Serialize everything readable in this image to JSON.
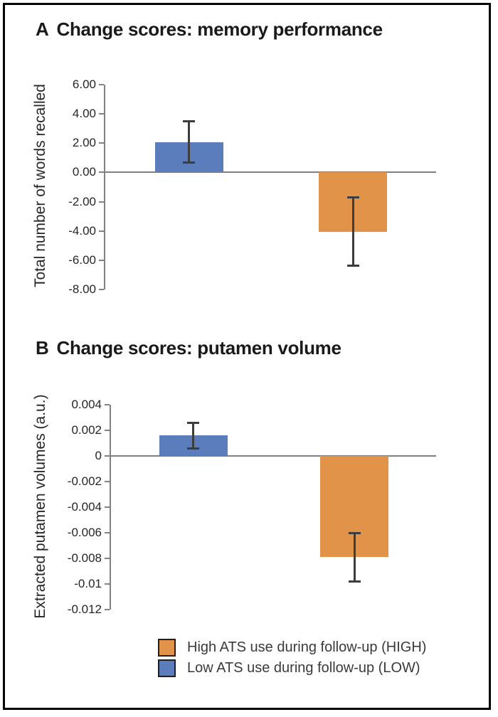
{
  "figure": {
    "legend": {
      "items": [
        {
          "name": "high",
          "label": "High ATS use during follow-up (HIGH)",
          "color": "#e2934a"
        },
        {
          "name": "low",
          "label": "Low ATS use during follow-up (LOW)",
          "color": "#5b7dbc"
        }
      ]
    }
  },
  "colors": {
    "bar_low": "#5b7dbc",
    "bar_high": "#e2934a",
    "error_bar": "#3d3d3d",
    "axis": "#828282",
    "zero_line": "#7f7f7f",
    "frame_border": "#000000",
    "text": "#1a1a1a"
  },
  "chart_data": [
    {
      "type": "bar",
      "panel_label": "A",
      "title": "Change scores: memory performance",
      "xlabel": "",
      "ylabel": "Total number of words recalled",
      "ylim": [
        -8,
        6
      ],
      "yticks": [
        6,
        4,
        2,
        0,
        -2,
        -4,
        -6,
        -8
      ],
      "ytick_labels": [
        "6.00",
        "4.00",
        "2.00",
        "0.00",
        "-2.00",
        "-4.00",
        "-6.00",
        "-8.00"
      ],
      "grid": false,
      "categories": [
        "Low ATS use during follow-up (LOW)",
        "High ATS use during follow-up (HIGH)"
      ],
      "values": [
        2.05,
        -4.05
      ],
      "error_low": [
        0.7,
        -6.35
      ],
      "error_high": [
        3.5,
        -1.7
      ],
      "bar_colors": [
        "#5b7dbc",
        "#e2934a"
      ]
    },
    {
      "type": "bar",
      "panel_label": "B",
      "title": "Change scores: putamen volume",
      "xlabel": "",
      "ylabel": "Extracted putamen volumes (a.u.)",
      "ylim": [
        -0.012,
        0.004
      ],
      "yticks": [
        0.004,
        0.002,
        0,
        -0.002,
        -0.004,
        -0.006,
        -0.008,
        -0.01,
        -0.012
      ],
      "ytick_labels": [
        "0.004",
        "0.002",
        "0",
        "-0.002",
        "-0.004",
        "-0.006",
        "-0.008",
        "-0.01",
        "-0.012"
      ],
      "grid": false,
      "categories": [
        "Low ATS use during follow-up (LOW)",
        "High ATS use during follow-up (HIGH)"
      ],
      "values": [
        0.0016,
        -0.0079
      ],
      "error_low": [
        0.0006,
        -0.0098
      ],
      "error_high": [
        0.0026,
        -0.006
      ],
      "bar_colors": [
        "#5b7dbc",
        "#e2934a"
      ]
    }
  ]
}
